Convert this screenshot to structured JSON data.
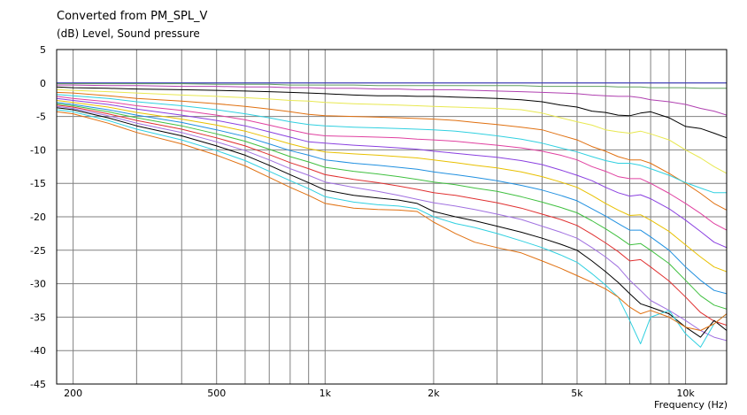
{
  "chart_data": {
    "type": "line",
    "title": "Converted from PM_SPL_V",
    "ylabel": "(dB)  Level, Sound pressure",
    "xlabel": "Frequency  (Hz)",
    "x_scale": "log",
    "xlim": [
      180,
      13000
    ],
    "ylim": [
      -45,
      5
    ],
    "x_ticks": [
      200,
      500,
      1000,
      2000,
      5000,
      10000
    ],
    "x_tick_labels": [
      "200",
      "500",
      "1k",
      "2k",
      "5k",
      "10k"
    ],
    "x_grid": [
      200,
      300,
      400,
      500,
      600,
      700,
      800,
      900,
      1000,
      2000,
      3000,
      4000,
      5000,
      6000,
      7000,
      8000,
      9000,
      10000
    ],
    "y_ticks": [
      5,
      0,
      -5,
      -10,
      -15,
      -20,
      -25,
      -30,
      -35,
      -40,
      -45
    ],
    "grid": true,
    "legend": "none",
    "x": [
      180,
      200,
      250,
      300,
      400,
      500,
      600,
      700,
      800,
      900,
      1000,
      1200,
      1400,
      1600,
      1800,
      2000,
      2300,
      2600,
      3000,
      3500,
      4000,
      4500,
      5000,
      5500,
      6000,
      6500,
      7000,
      7500,
      8000,
      9000,
      10000,
      11000,
      12000,
      13000
    ],
    "series": [
      {
        "color": "#3030c0",
        "values": [
          0,
          0,
          0,
          0,
          0,
          0,
          0,
          0,
          0,
          0,
          0,
          0,
          0,
          0,
          0,
          0,
          0,
          0,
          0,
          0,
          0,
          0,
          0,
          0,
          0,
          0,
          0,
          0,
          0,
          0,
          0,
          0,
          0,
          0
        ]
      },
      {
        "color": "#60a060",
        "values": [
          -0.1,
          -0.1,
          -0.1,
          -0.1,
          -0.1,
          -0.2,
          -0.2,
          -0.2,
          -0.3,
          -0.3,
          -0.3,
          -0.3,
          -0.4,
          -0.4,
          -0.4,
          -0.4,
          -0.4,
          -0.4,
          -0.4,
          -0.4,
          -0.5,
          -0.5,
          -0.5,
          -0.5,
          -0.5,
          -0.6,
          -0.6,
          -0.6,
          -0.7,
          -0.7,
          -0.7,
          -0.8,
          -0.8,
          -0.8
        ]
      },
      {
        "color": "#b040b0",
        "values": [
          -0.3,
          -0.3,
          -0.4,
          -0.4,
          -0.5,
          -0.5,
          -0.6,
          -0.6,
          -0.7,
          -0.7,
          -0.8,
          -0.8,
          -0.9,
          -0.9,
          -1.0,
          -1.0,
          -1.0,
          -1.1,
          -1.2,
          -1.3,
          -1.4,
          -1.5,
          -1.6,
          -1.8,
          -1.9,
          -2.0,
          -2.0,
          -2.2,
          -2.5,
          -2.8,
          -3.2,
          -3.8,
          -4.2,
          -4.8
        ]
      },
      {
        "color": "#000000",
        "values": [
          -0.6,
          -0.7,
          -0.8,
          -0.9,
          -1.0,
          -1.1,
          -1.2,
          -1.3,
          -1.4,
          -1.5,
          -1.6,
          -1.8,
          -1.9,
          -1.9,
          -2.0,
          -2.0,
          -2.1,
          -2.2,
          -2.3,
          -2.5,
          -2.8,
          -3.3,
          -3.6,
          -4.2,
          -4.4,
          -4.8,
          -4.9,
          -4.5,
          -4.3,
          -5.2,
          -6.5,
          -6.8,
          -7.5,
          -8.2
        ]
      },
      {
        "color": "#e8e850",
        "values": [
          -1.0,
          -1.1,
          -1.3,
          -1.5,
          -1.8,
          -2.0,
          -2.2,
          -2.4,
          -2.6,
          -2.7,
          -2.9,
          -3.1,
          -3.2,
          -3.3,
          -3.4,
          -3.5,
          -3.6,
          -3.7,
          -3.8,
          -4.0,
          -4.5,
          -5.2,
          -5.8,
          -6.3,
          -7.0,
          -7.3,
          -7.5,
          -7.2,
          -7.6,
          -8.5,
          -10.0,
          -11.2,
          -12.5,
          -13.5
        ]
      },
      {
        "color": "#e07010",
        "values": [
          -1.4,
          -1.5,
          -1.9,
          -2.3,
          -2.7,
          -3.1,
          -3.5,
          -3.9,
          -4.3,
          -4.7,
          -4.9,
          -5.0,
          -5.1,
          -5.2,
          -5.3,
          -5.4,
          -5.6,
          -5.9,
          -6.2,
          -6.6,
          -7.0,
          -7.8,
          -8.5,
          -9.5,
          -10.2,
          -11.0,
          -11.5,
          -11.5,
          -12.0,
          -13.5,
          -15.0,
          -16.5,
          -18.0,
          -19.0
        ]
      },
      {
        "color": "#30d0e0",
        "values": [
          -1.7,
          -1.9,
          -2.3,
          -2.8,
          -3.4,
          -4.0,
          -4.6,
          -5.2,
          -5.8,
          -6.2,
          -6.4,
          -6.6,
          -6.7,
          -6.8,
          -6.9,
          -7.0,
          -7.2,
          -7.5,
          -7.9,
          -8.4,
          -9.0,
          -9.7,
          -10.3,
          -11.0,
          -11.6,
          -12.0,
          -12.0,
          -12.3,
          -12.8,
          -13.8,
          -14.9,
          -15.7,
          -16.4,
          -16.4
        ]
      },
      {
        "color": "#e040a0",
        "values": [
          -2.0,
          -2.3,
          -2.8,
          -3.4,
          -4.1,
          -4.8,
          -5.5,
          -6.3,
          -7.0,
          -7.6,
          -7.9,
          -8.0,
          -8.1,
          -8.2,
          -8.4,
          -8.5,
          -8.7,
          -9.0,
          -9.3,
          -9.7,
          -10.2,
          -10.8,
          -11.5,
          -12.5,
          -13.2,
          -14.0,
          -14.3,
          -14.3,
          -15.0,
          -16.5,
          -18.0,
          -19.5,
          -21.0,
          -22.0
        ]
      },
      {
        "color": "#8a40e0",
        "values": [
          -2.3,
          -2.6,
          -3.2,
          -3.9,
          -4.8,
          -5.6,
          -6.4,
          -7.3,
          -8.1,
          -8.8,
          -9.0,
          -9.3,
          -9.5,
          -9.7,
          -9.9,
          -10.2,
          -10.5,
          -10.8,
          -11.1,
          -11.6,
          -12.2,
          -13.0,
          -13.8,
          -14.6,
          -15.6,
          -16.4,
          -16.9,
          -16.7,
          -17.3,
          -18.8,
          -20.5,
          -22.2,
          -23.8,
          -24.6
        ]
      },
      {
        "color": "#e8c000",
        "values": [
          -2.6,
          -2.9,
          -3.6,
          -4.4,
          -5.4,
          -6.3,
          -7.2,
          -8.2,
          -9.1,
          -9.8,
          -10.3,
          -10.6,
          -10.8,
          -11.0,
          -11.2,
          -11.5,
          -11.9,
          -12.3,
          -12.7,
          -13.3,
          -14.0,
          -14.8,
          -15.6,
          -16.8,
          -18.0,
          -19.0,
          -19.8,
          -19.7,
          -20.5,
          -22.2,
          -24.2,
          -26.0,
          -27.5,
          -28.2
        ]
      },
      {
        "color": "#2090e0",
        "values": [
          -2.9,
          -3.2,
          -4.0,
          -4.8,
          -5.9,
          -7.0,
          -8.0,
          -9.1,
          -10.1,
          -10.8,
          -11.5,
          -12.0,
          -12.3,
          -12.6,
          -12.9,
          -13.3,
          -13.7,
          -14.1,
          -14.6,
          -15.3,
          -16.0,
          -16.8,
          -17.6,
          -18.8,
          -19.9,
          -21.0,
          -22.0,
          -22.0,
          -23.0,
          -25.0,
          -27.5,
          -29.5,
          -31.0,
          -31.5
        ]
      },
      {
        "color": "#40c040",
        "values": [
          -3.1,
          -3.4,
          -4.3,
          -5.2,
          -6.4,
          -7.6,
          -8.7,
          -9.9,
          -11.0,
          -11.8,
          -12.6,
          -13.2,
          -13.6,
          -14.0,
          -14.4,
          -14.8,
          -15.2,
          -15.7,
          -16.2,
          -17.0,
          -17.8,
          -18.6,
          -19.4,
          -20.6,
          -21.8,
          -23.0,
          -24.2,
          -24.0,
          -25.0,
          -27.0,
          -29.5,
          -31.8,
          -33.2,
          -33.8
        ]
      },
      {
        "color": "#e03030",
        "values": [
          -3.3,
          -3.6,
          -4.6,
          -5.6,
          -6.9,
          -8.2,
          -9.4,
          -10.7,
          -11.9,
          -12.8,
          -13.7,
          -14.4,
          -14.9,
          -15.4,
          -15.9,
          -16.4,
          -16.8,
          -17.3,
          -17.9,
          -18.7,
          -19.6,
          -20.4,
          -21.3,
          -22.6,
          -23.9,
          -25.2,
          -26.6,
          -26.4,
          -27.5,
          -29.6,
          -32.0,
          -34.3,
          -35.6,
          -36.2
        ]
      },
      {
        "color": "#a070e0",
        "values": [
          -3.5,
          -3.8,
          -4.9,
          -6.0,
          -7.4,
          -8.8,
          -10.1,
          -11.5,
          -12.8,
          -13.8,
          -14.8,
          -15.6,
          -16.2,
          -16.8,
          -17.4,
          -17.9,
          -18.4,
          -18.9,
          -19.6,
          -20.4,
          -21.4,
          -22.3,
          -23.2,
          -24.6,
          -26.0,
          -27.5,
          -29.5,
          -31.0,
          -32.5,
          -34.0,
          -35.5,
          -37.0,
          -38.0,
          -38.5
        ]
      },
      {
        "color": "#000000",
        "values": [
          -3.7,
          -4.0,
          -5.2,
          -6.4,
          -7.9,
          -9.4,
          -10.8,
          -12.3,
          -13.7,
          -14.9,
          -16.0,
          -16.8,
          -17.2,
          -17.5,
          -18.0,
          -19.2,
          -20.0,
          -20.6,
          -21.4,
          -22.3,
          -23.2,
          -24.1,
          -25.0,
          -26.6,
          -28.2,
          -29.8,
          -31.5,
          -33.0,
          -33.5,
          -34.5,
          -36.5,
          -38.0,
          -35.5,
          -37.0
        ]
      },
      {
        "color": "#30d0e0",
        "values": [
          -4.0,
          -4.3,
          -5.6,
          -6.9,
          -8.5,
          -10.1,
          -11.6,
          -13.2,
          -14.6,
          -15.8,
          -17.0,
          -17.8,
          -18.2,
          -18.4,
          -18.8,
          -20.0,
          -21.0,
          -21.6,
          -22.5,
          -23.6,
          -24.6,
          -25.7,
          -26.8,
          -28.5,
          -30.2,
          -32.0,
          -35.5,
          -39.0,
          -35.0,
          -34.0,
          -37.5,
          -39.5,
          -36.0,
          -34.5
        ]
      },
      {
        "color": "#e07010",
        "values": [
          -4.3,
          -4.6,
          -6.0,
          -7.4,
          -9.1,
          -10.8,
          -12.4,
          -14.1,
          -15.6,
          -16.8,
          -18.0,
          -18.7,
          -18.9,
          -19.0,
          -19.2,
          -20.8,
          -22.5,
          -23.8,
          -24.6,
          -25.4,
          -26.6,
          -27.7,
          -28.8,
          -29.8,
          -30.8,
          -32.0,
          -33.5,
          -34.5,
          -34.0,
          -35.0,
          -36.5,
          -37.0,
          -36.0,
          -34.5
        ]
      }
    ]
  }
}
